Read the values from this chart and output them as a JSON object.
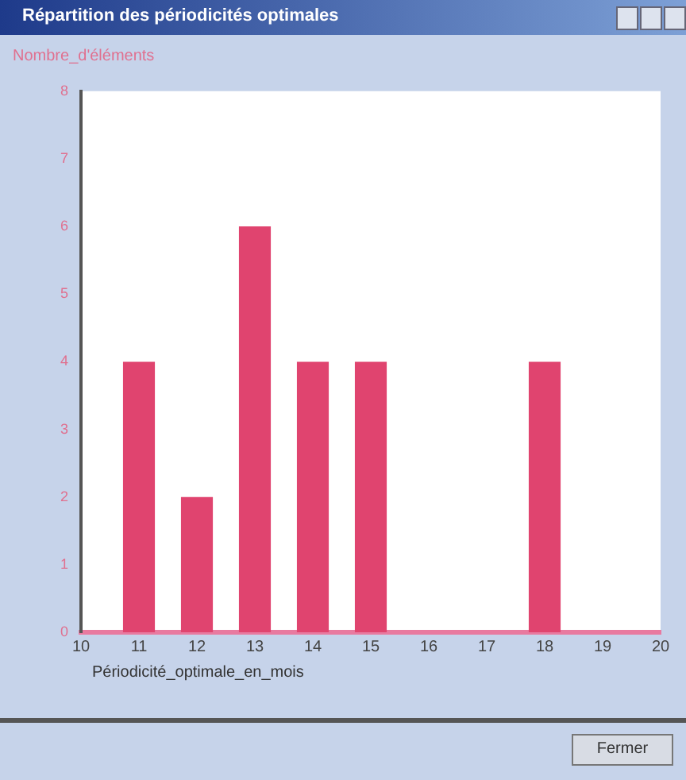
{
  "chart_data": {
    "type": "bar",
    "title": "Répartition des périodicités optimales",
    "xlabel": "Périodicité_optimale_en_mois",
    "ylabel": "Nombre_d'éléments",
    "x": [
      11,
      12,
      13,
      14,
      15,
      16,
      17,
      18,
      19
    ],
    "values": [
      4,
      2,
      6,
      4,
      4,
      0,
      0,
      4,
      0
    ],
    "color": "#e0446f",
    "xlim": [
      10,
      20
    ],
    "xticks": [
      10,
      11,
      12,
      13,
      14,
      15,
      16,
      17,
      18,
      19,
      20
    ],
    "ylim": [
      0,
      8
    ],
    "yticks": [
      0,
      1,
      2,
      3,
      4,
      5,
      6,
      7,
      8
    ],
    "grid": false,
    "legend": false,
    "annotations": [
      "Fermer"
    ]
  }
}
